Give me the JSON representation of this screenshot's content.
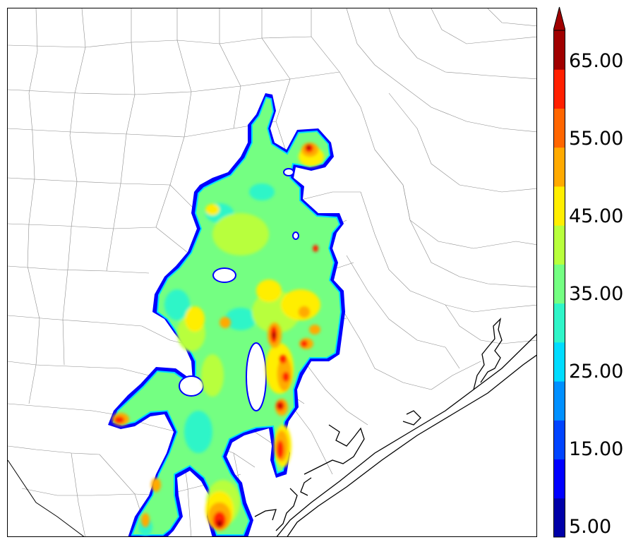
{
  "colorbar": {
    "labels": [
      "5.00",
      "15.00",
      "25.00",
      "35.00",
      "45.00",
      "55.00",
      "65.00"
    ],
    "levels": [
      5,
      10,
      15,
      20,
      25,
      30,
      35,
      40,
      45,
      50,
      55,
      60,
      65,
      70
    ],
    "colors": [
      "#0000a8",
      "#0000ff",
      "#0044ff",
      "#0090ff",
      "#00dcff",
      "#2ff5c8",
      "#74ff82",
      "#b8ff3c",
      "#ffee00",
      "#ffaa00",
      "#ff6600",
      "#ff2000",
      "#a00000"
    ],
    "extend": "max"
  },
  "map": {
    "coast_color": "#000000",
    "county_line_color": "#8c8c8c"
  }
}
